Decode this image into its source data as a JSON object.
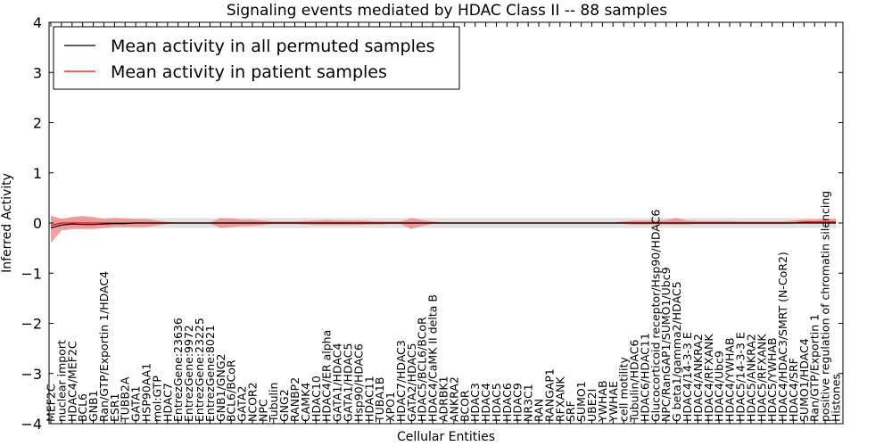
{
  "chart_data": {
    "type": "line",
    "title": "Signaling events mediated by HDAC Class II -- 88 samples",
    "xlabel": "Cellular Entities",
    "ylabel": "Inferred Activity",
    "ylim": [
      -4,
      4
    ],
    "yticks": [
      -4,
      -3,
      -2,
      -1,
      0,
      1,
      2,
      3,
      4
    ],
    "grid": false,
    "legend_position": "top-left",
    "categories": [
      "MEF2C",
      "nuclear import",
      "HDAC4/MEF2C",
      "BCL6",
      "GNB1",
      "Ran/GTP/Exportin 1/HDAC4",
      "ESR1",
      "TUBB2A",
      "GATA1",
      "HSP90AA1",
      "mol:GTP",
      "HDAC7",
      "EntrezGene:23636",
      "EntrezGene:9972",
      "EntrezGene:23225",
      "EntrezGene:8021",
      "GNB1/GNG2",
      "BCL6/BCoR",
      "GATA2",
      "NCOR2",
      "NPC",
      "Tubulin",
      "GNG2",
      "RANBP2",
      "CAMK4",
      "HDAC10",
      "HDAC4/ER alpha",
      "GATA1/HDAC4",
      "GATA1/HDAC5",
      "Hsp90/HDAC6",
      "HDAC11",
      "TUBA1B",
      "XPO1",
      "HDAC7/HDAC3",
      "GATA2/HDAC5",
      "HDAC5/BCL6/BCoR",
      "HDAC4/CaMK II delta B",
      "ADRBK1",
      "ANKRA2",
      "BCOR",
      "HDAC3",
      "HDAC4",
      "HDAC5",
      "HDAC6",
      "HDAC9",
      "NR3C1",
      "RAN",
      "RANGAP1",
      "RFXANK",
      "SRF",
      "SUMO1",
      "UBE2I",
      "YWHAB",
      "YWHAE",
      "cell motility",
      "Tubulin/HDAC6",
      "HDAC6/HDAC11",
      "Glucocorticoid receptor/Hsp90/HDAC6",
      "NPC/RanGAP1/SUMO1/Ubc9",
      "G beta1/gamma2/HDAC5",
      "HDAC4/14-3-3 E",
      "HDAC4/ANKRA2",
      "HDAC4/RFXANK",
      "HDAC4/Ubc9",
      "HDAC4/YWHAB",
      "HDAC5/14-3-3 E",
      "HDAC5/ANKRA2",
      "HDAC5/RFXANK",
      "HDAC5/YWHAB",
      "HDAC4/HDAC3/SMRT (N-CoR2)",
      "HDAC4/SRF",
      "SUMO1/HDAC4",
      "Ran/GTP/Exportin 1",
      "positive regulation of chromatin silencing",
      "Histones"
    ],
    "series": [
      {
        "name": "Mean activity in all permuted samples",
        "color": "#000000",
        "values": [
          -0.1,
          -0.04,
          -0.02,
          -0.03,
          -0.03,
          -0.02,
          -0.01,
          -0.01,
          0,
          0,
          0,
          0,
          0,
          0,
          0,
          0,
          0,
          0,
          0,
          0,
          0,
          0,
          0,
          0,
          0,
          0,
          0,
          0,
          0,
          0,
          0,
          0,
          0,
          0,
          0,
          0,
          0,
          0,
          0,
          0,
          0,
          0,
          0,
          0,
          0,
          0,
          0,
          0,
          0,
          0,
          0,
          0,
          0,
          0,
          0,
          0,
          0,
          0,
          0,
          0,
          0,
          0,
          0,
          0,
          0,
          0,
          0,
          0,
          0,
          0,
          0,
          0,
          0,
          0,
          0
        ],
        "band_low": [
          -0.1,
          -0.1,
          -0.1,
          -0.1,
          -0.1,
          -0.1,
          -0.1,
          -0.1,
          -0.1,
          -0.1,
          -0.1,
          -0.1,
          -0.1,
          -0.1,
          -0.1,
          -0.1,
          -0.1,
          -0.1,
          -0.1,
          -0.1,
          -0.1,
          -0.1,
          -0.1,
          -0.1,
          -0.1,
          -0.1,
          -0.1,
          -0.1,
          -0.1,
          -0.1,
          -0.1,
          -0.1,
          -0.1,
          -0.1,
          -0.1,
          -0.1,
          -0.1,
          -0.1,
          -0.1,
          -0.1,
          -0.1,
          -0.1,
          -0.1,
          -0.1,
          -0.1,
          -0.1,
          -0.1,
          -0.1,
          -0.1,
          -0.1,
          -0.1,
          -0.1,
          -0.1,
          -0.1,
          -0.1,
          -0.1,
          -0.1,
          -0.1,
          -0.1,
          -0.1,
          -0.1,
          -0.1,
          -0.1,
          -0.1,
          -0.1,
          -0.1,
          -0.1,
          -0.1,
          -0.1,
          -0.1,
          -0.1,
          -0.1,
          -0.1,
          -0.1,
          -0.1
        ],
        "band_high": [
          0.1,
          0.1,
          0.1,
          0.1,
          0.1,
          0.1,
          0.1,
          0.1,
          0.1,
          0.1,
          0.1,
          0.1,
          0.1,
          0.1,
          0.1,
          0.1,
          0.1,
          0.1,
          0.1,
          0.1,
          0.1,
          0.1,
          0.1,
          0.1,
          0.1,
          0.1,
          0.1,
          0.1,
          0.1,
          0.1,
          0.1,
          0.1,
          0.1,
          0.1,
          0.1,
          0.1,
          0.1,
          0.1,
          0.1,
          0.1,
          0.1,
          0.1,
          0.1,
          0.1,
          0.1,
          0.1,
          0.1,
          0.1,
          0.1,
          0.1,
          0.1,
          0.1,
          0.1,
          0.1,
          0.1,
          0.1,
          0.1,
          0.1,
          0.1,
          0.1,
          0.1,
          0.1,
          0.1,
          0.1,
          0.1,
          0.1,
          0.1,
          0.1,
          0.1,
          0.1,
          0.1,
          0.1,
          0.1,
          0.1,
          0.1
        ],
        "band_color": "#c8c8c8"
      },
      {
        "name": "Mean activity in patient samples",
        "color": "#e01010",
        "values": [
          -0.05,
          0,
          0,
          0,
          0,
          0,
          0,
          0,
          0,
          0,
          0,
          0,
          0,
          0,
          0,
          0,
          0,
          0,
          0,
          0,
          0,
          0,
          0,
          0,
          0,
          0,
          0,
          0,
          0,
          0,
          0,
          0,
          0,
          0,
          0,
          0,
          0,
          0,
          0,
          0,
          0,
          0,
          0,
          0,
          0,
          0,
          0,
          0,
          0,
          0,
          0,
          0,
          0,
          0,
          0,
          0,
          0,
          0,
          0,
          0,
          0,
          0,
          0,
          0,
          0,
          0,
          0,
          0,
          0,
          0,
          0,
          0.02,
          0.02,
          0.02,
          0.02
        ],
        "band_low": [
          -0.4,
          -0.15,
          -0.12,
          -0.12,
          -0.12,
          -0.1,
          -0.08,
          -0.08,
          -0.08,
          -0.08,
          -0.05,
          -0.02,
          -0.01,
          -0.01,
          -0.01,
          -0.01,
          -0.1,
          -0.08,
          -0.06,
          -0.06,
          -0.04,
          -0.02,
          -0.02,
          -0.02,
          -0.03,
          -0.04,
          -0.04,
          -0.04,
          -0.04,
          -0.04,
          -0.03,
          -0.03,
          -0.02,
          -0.02,
          -0.12,
          -0.06,
          -0.02,
          -0.01,
          -0.01,
          -0.01,
          -0.01,
          -0.01,
          -0.01,
          -0.01,
          -0.01,
          -0.01,
          -0.01,
          -0.01,
          -0.01,
          -0.01,
          -0.01,
          -0.01,
          -0.01,
          -0.01,
          -0.02,
          -0.03,
          -0.03,
          -0.03,
          -0.03,
          -0.03,
          -0.03,
          -0.02,
          -0.02,
          -0.02,
          -0.02,
          -0.02,
          -0.02,
          -0.02,
          -0.02,
          -0.02,
          -0.01,
          0,
          0,
          0,
          0
        ],
        "band_high": [
          0.15,
          0.08,
          0.12,
          0.14,
          0.12,
          0.08,
          0.1,
          0.09,
          0.08,
          0.08,
          0.05,
          0.02,
          0.01,
          0.01,
          0.01,
          0.01,
          0.1,
          0.09,
          0.07,
          0.07,
          0.05,
          0.03,
          0.03,
          0.03,
          0.04,
          0.05,
          0.06,
          0.05,
          0.05,
          0.05,
          0.04,
          0.03,
          0.03,
          0.03,
          0.1,
          0.06,
          0.03,
          0.01,
          0.01,
          0.01,
          0.01,
          0.01,
          0.01,
          0.01,
          0.01,
          0.01,
          0.01,
          0.01,
          0.01,
          0.01,
          0.01,
          0.01,
          0.01,
          0.01,
          0.03,
          0.05,
          0.05,
          0.05,
          0.06,
          0.1,
          0.05,
          0.04,
          0.04,
          0.04,
          0.04,
          0.03,
          0.03,
          0.03,
          0.03,
          0.03,
          0.05,
          0.07,
          0.07,
          0.08,
          0.08
        ],
        "band_color": "#f08080"
      }
    ]
  }
}
